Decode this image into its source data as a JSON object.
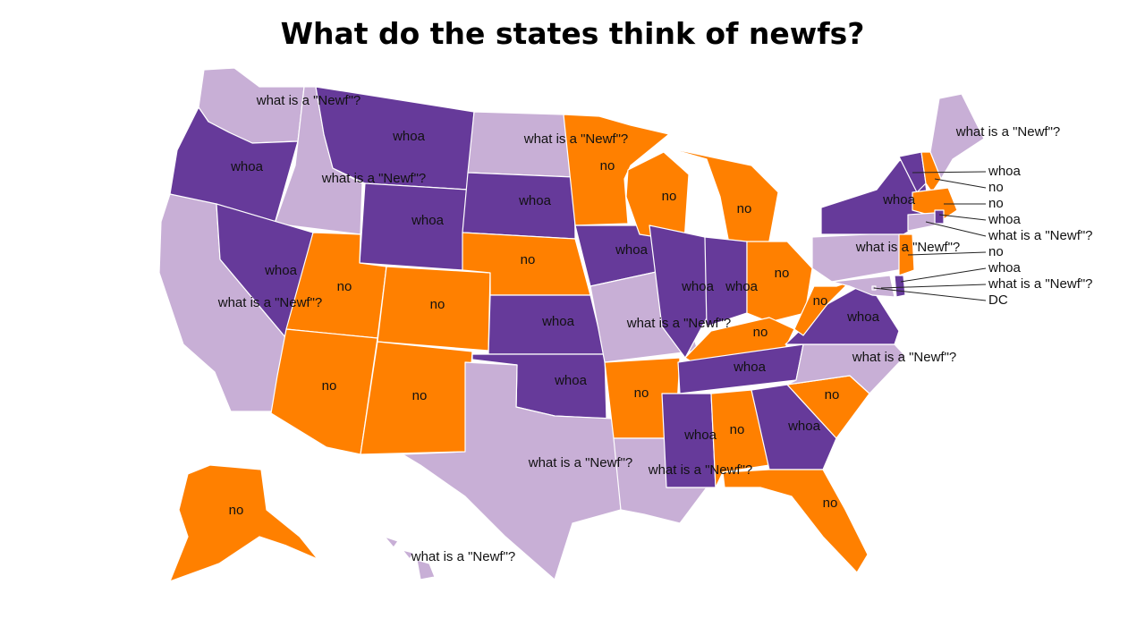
{
  "title": "What do the states think of newfs?",
  "colors": {
    "whoa": "#663a9a",
    "no": "#ff8000",
    "what is a \"Newf\"?": "#c8afd6"
  },
  "states": [
    {
      "id": "WA",
      "answer": "what is a \"Newf\"?"
    },
    {
      "id": "OR",
      "answer": "whoa"
    },
    {
      "id": "CA",
      "answer": "what is a \"Newf\"?"
    },
    {
      "id": "ID",
      "answer": "what is a \"Newf\"?"
    },
    {
      "id": "NV",
      "answer": "whoa"
    },
    {
      "id": "MT",
      "answer": "whoa"
    },
    {
      "id": "WY",
      "answer": "whoa"
    },
    {
      "id": "UT",
      "answer": "no"
    },
    {
      "id": "CO",
      "answer": "no"
    },
    {
      "id": "AZ",
      "answer": "no"
    },
    {
      "id": "NM",
      "answer": "no"
    },
    {
      "id": "ND",
      "answer": "what is a \"Newf\"?"
    },
    {
      "id": "SD",
      "answer": "whoa"
    },
    {
      "id": "NE",
      "answer": "no"
    },
    {
      "id": "KS",
      "answer": "whoa"
    },
    {
      "id": "OK",
      "answer": "whoa"
    },
    {
      "id": "TX",
      "answer": "what is a \"Newf\"?"
    },
    {
      "id": "MN",
      "answer": "no"
    },
    {
      "id": "IA",
      "answer": "whoa"
    },
    {
      "id": "MO",
      "answer": "what is a \"Newf\"?"
    },
    {
      "id": "AR",
      "answer": "no"
    },
    {
      "id": "LA",
      "answer": "what is a \"Newf\"?"
    },
    {
      "id": "WI",
      "answer": "no"
    },
    {
      "id": "IL",
      "answer": "whoa"
    },
    {
      "id": "MI",
      "answer": "no"
    },
    {
      "id": "IN",
      "answer": "whoa"
    },
    {
      "id": "OH",
      "answer": "no"
    },
    {
      "id": "KY",
      "answer": "no"
    },
    {
      "id": "TN",
      "answer": "whoa"
    },
    {
      "id": "MS",
      "answer": "whoa"
    },
    {
      "id": "AL",
      "answer": "no"
    },
    {
      "id": "GA",
      "answer": "whoa"
    },
    {
      "id": "FL",
      "answer": "no"
    },
    {
      "id": "SC",
      "answer": "no"
    },
    {
      "id": "NC",
      "answer": "what is a \"Newf\"?"
    },
    {
      "id": "VA",
      "answer": "whoa"
    },
    {
      "id": "WV",
      "answer": "no"
    },
    {
      "id": "PA",
      "answer": "what is a \"Newf\"?"
    },
    {
      "id": "NY",
      "answer": "whoa"
    },
    {
      "id": "ME",
      "answer": "what is a \"Newf\"?"
    },
    {
      "id": "VT",
      "answer": "whoa"
    },
    {
      "id": "NH",
      "answer": "no"
    },
    {
      "id": "MA",
      "answer": "no"
    },
    {
      "id": "RI",
      "answer": "whoa"
    },
    {
      "id": "CT",
      "answer": "what is a \"Newf\"?"
    },
    {
      "id": "NJ",
      "answer": "no"
    },
    {
      "id": "DE",
      "answer": "whoa"
    },
    {
      "id": "MD",
      "answer": "what is a \"Newf\"?"
    },
    {
      "id": "DC",
      "answer": "what is a \"Newf\"?"
    },
    {
      "id": "AK",
      "answer": "no"
    },
    {
      "id": "HI",
      "answer": "what is a \"Newf\"?"
    }
  ],
  "callout_labels": [
    {
      "state": "VT",
      "text": "whoa"
    },
    {
      "state": "NH",
      "text": "no"
    },
    {
      "state": "MA",
      "text": "no"
    },
    {
      "state": "RI",
      "text": "whoa"
    },
    {
      "state": "CT",
      "text": "what is a \"Newf\"?"
    },
    {
      "state": "NJ",
      "text": "no"
    },
    {
      "state": "DE",
      "text": "whoa"
    },
    {
      "state": "MD",
      "text": "what is a \"Newf\"?"
    },
    {
      "state": "DC",
      "text": "DC"
    }
  ]
}
